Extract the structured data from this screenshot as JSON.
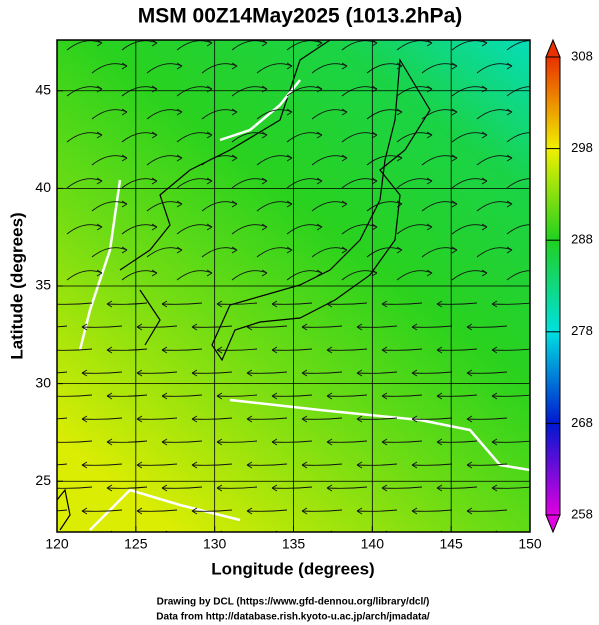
{
  "chart_data": {
    "type": "map",
    "title": "MSM 00Z14May2025 (1013.2hPa)",
    "x_label": "Longitude (degrees)",
    "y_label": "Latitude  (degrees)",
    "xlim": [
      120,
      150
    ],
    "ylim": [
      22.4,
      47.6
    ],
    "xticks": [
      120,
      125,
      130,
      135,
      140,
      145,
      150
    ],
    "yticks": [
      25,
      30,
      35,
      40,
      45
    ],
    "grid": true,
    "colorbar": {
      "lim": [
        258,
        308
      ],
      "ticks": [
        258,
        268,
        278,
        288,
        298,
        308
      ],
      "colors": [
        "#e000e0",
        "#0018d0",
        "#00e0e0",
        "#20d020",
        "#f0f000",
        "#e83000"
      ]
    },
    "credits": [
      "Drawing by DCL (https://www.gfd-dennou.org/library/dcl/)",
      "Data from http://database.rish.kyoto-u.ac.jp/arch/jmadata/"
    ]
  }
}
